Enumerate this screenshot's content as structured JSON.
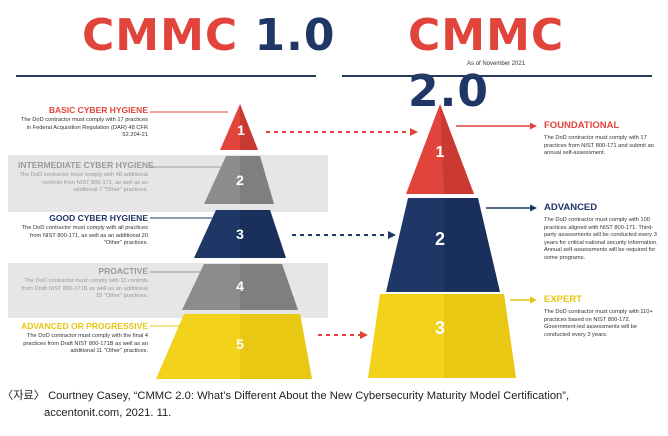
{
  "cmmc1": {
    "title_prefix": "CMMC",
    "title_version": "1.0",
    "levels": [
      {
        "name": "BASIC CYBER HYGIENE",
        "number": "1",
        "color": "#e0443a",
        "name_color": "#e0443a",
        "description": "The DoD contractor must comply with 17 practices in Federal Acquisition Regulation (DAR) 48 CFR 52.204-21"
      },
      {
        "name": "INTERMEDIATE CYBER HYGIENE",
        "number": "2",
        "color": "#8c8c8c",
        "name_color": "#9a9a9a",
        "description": "The DoD contractor must comply with 48 additional controls from NIST 800-171, as well as an additional 7 \"Other\" practices."
      },
      {
        "name": "GOOD CYBER HYGIENE",
        "number": "3",
        "color": "#1f3766",
        "name_color": "#1f3766",
        "description": "The DoD contractor must comply with all practices from NIST 800-171, as well as an additional 20 \"Other\" practices."
      },
      {
        "name": "PROACTIVE",
        "number": "4",
        "color": "#8c8c8c",
        "name_color": "#9a9a9a",
        "description": "The DoD contractor must comply with 11 controls from Draft NIST 800-171B as well as an additional 15 \"Other\" practices."
      },
      {
        "name": "ADVANCED OR PROGRESSIVE",
        "number": "5",
        "color": "#f2d21b",
        "name_color": "#e8c512",
        "description": "The DoD contractor must comply with the final 4 practices from Draft NIST 800-171B as well as an additional 11 \"Other\" practices."
      }
    ]
  },
  "cmmc2": {
    "title_prefix": "CMMC",
    "title_version": "2.0",
    "as_of": "As of November 2021",
    "levels": [
      {
        "name": "FOUNDATIONAL",
        "number": "1",
        "color": "#e0443a",
        "description": "The DoD contractor must comply with 17 practices from NIST 800-171 and submit an annual self-assessment."
      },
      {
        "name": "ADVANCED",
        "number": "2",
        "color": "#1f3766",
        "description": "The DoD contractor must comply with 100 practices aligned with NIST 800-171. Third-party assessments will be conducted every 3 years for critical national security information. Annual self-assessments will be required for some programs."
      },
      {
        "name": "EXPERT",
        "number": "3",
        "color": "#f2d21b",
        "description": "The DoD contractor must comply with 110+ practices based on NIST 800-172. Government-led assessments will be conducted every 3 years."
      }
    ]
  },
  "colors": {
    "red": "#e0443a",
    "navy": "#1f3766",
    "gray": "#8c8c8c",
    "yellow": "#f2d21b"
  },
  "caption": {
    "line1": "〈자료〉 Courtney Casey, “CMMC 2.0: What’s Different About the New Cybersecurity Maturity Model Certification”,",
    "line2": "accentonit.com, 2021. 11."
  }
}
